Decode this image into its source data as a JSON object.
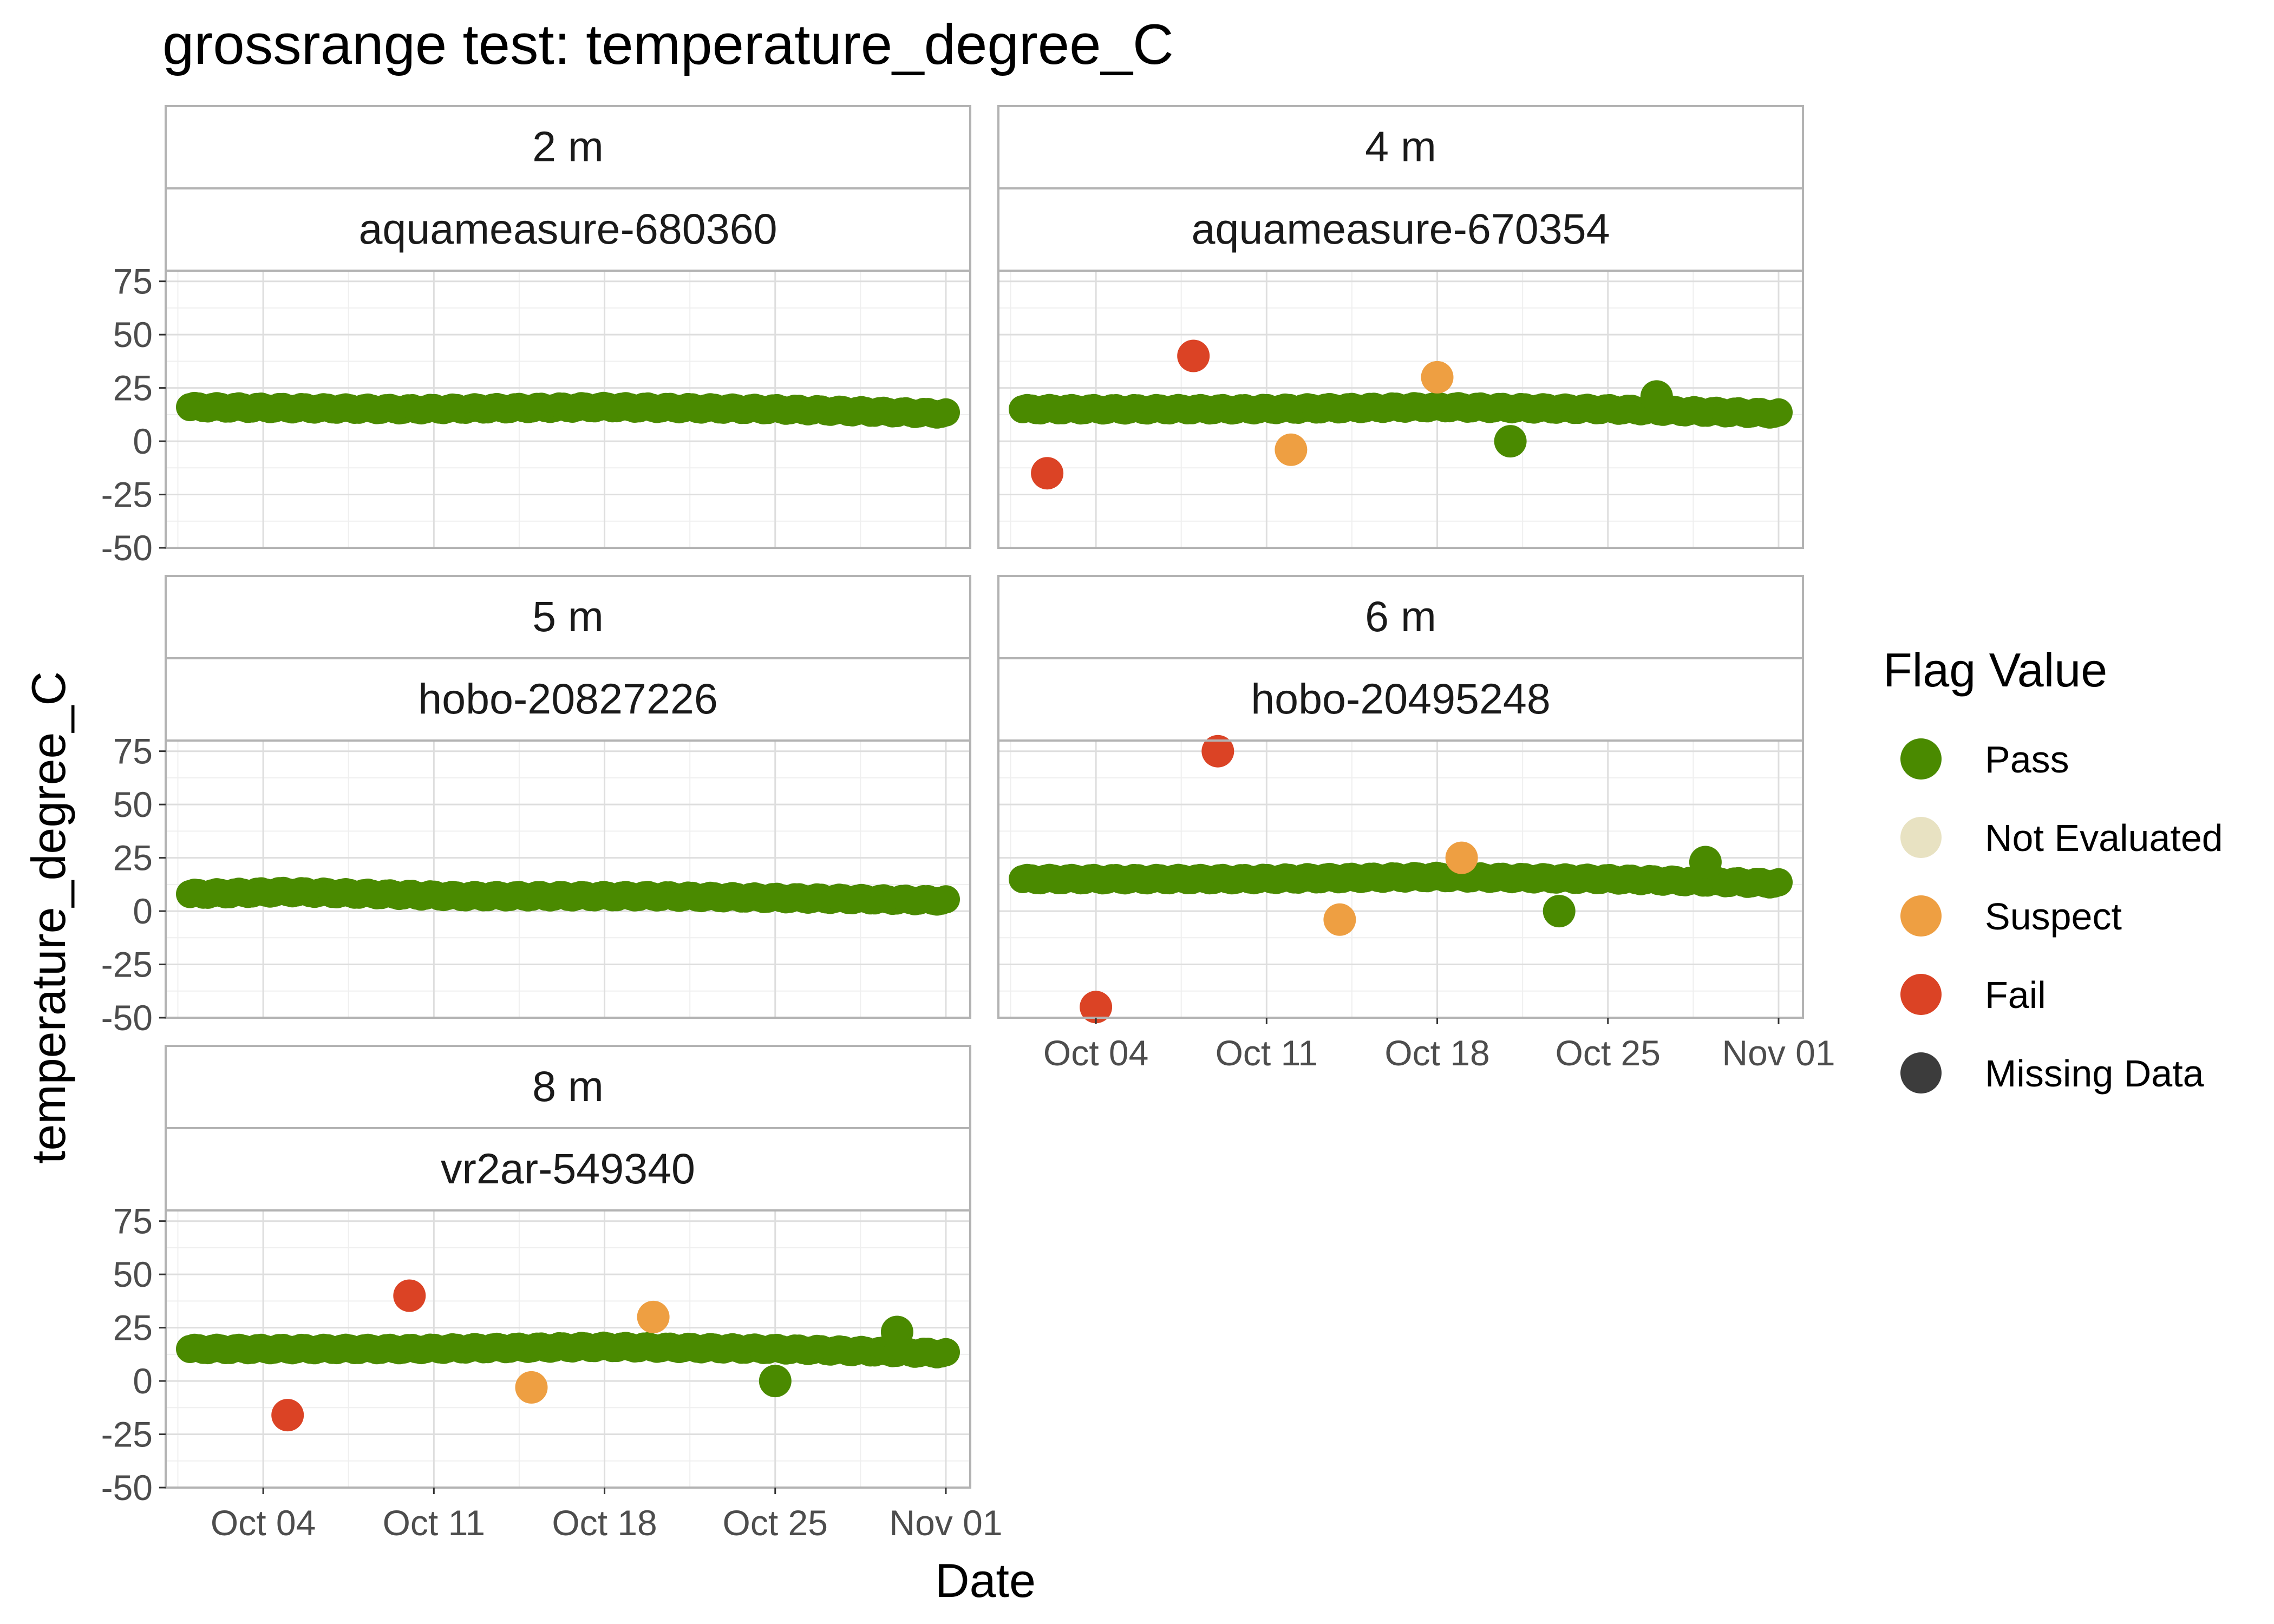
{
  "chart_data": {
    "type": "scatter",
    "title": "grossrange test: temperature_degree_C",
    "xlabel": "Date",
    "ylabel": "temperature_degree_C",
    "x_range": [
      "2023-09-30",
      "2023-11-02"
    ],
    "x_ticks": [
      {
        "date": "2023-10-04",
        "label": "Oct 04"
      },
      {
        "date": "2023-10-11",
        "label": "Oct 11"
      },
      {
        "date": "2023-10-18",
        "label": "Oct 18"
      },
      {
        "date": "2023-10-25",
        "label": "Oct 25"
      },
      {
        "date": "2023-11-01",
        "label": "Nov 01"
      }
    ],
    "y_ticks": [
      75,
      50,
      25,
      0,
      -25,
      -50
    ],
    "ylim": [
      -50,
      80
    ],
    "grid": true,
    "legend": {
      "title": "Flag Value",
      "position": "right",
      "entries": [
        {
          "label": "Pass",
          "color": "#4a8a00"
        },
        {
          "label": "Not Evaluated",
          "color": "#e8e2c2"
        },
        {
          "label": "Suspect",
          "color": "#ee9f42"
        },
        {
          "label": "Fail",
          "color": "#db4325"
        },
        {
          "label": "Missing Data",
          "color": "#3c3c3c"
        }
      ]
    },
    "panels": [
      {
        "depth": "2 m",
        "sensor": "aquameasure-680360",
        "pass_trend": [
          [
            "2023-10-01",
            16
          ],
          [
            "2023-10-10",
            15
          ],
          [
            "2023-10-18",
            16
          ],
          [
            "2023-10-25",
            15
          ],
          [
            "2023-11-01",
            13
          ]
        ],
        "outliers": []
      },
      {
        "depth": "4 m",
        "sensor": "aquameasure-670354",
        "pass_trend": [
          [
            "2023-10-01",
            15
          ],
          [
            "2023-10-10",
            15
          ],
          [
            "2023-10-18",
            16
          ],
          [
            "2023-10-25",
            15
          ],
          [
            "2023-11-01",
            13
          ]
        ],
        "outliers": [
          {
            "date": "2023-10-02",
            "value": -15,
            "flag": "Fail"
          },
          {
            "date": "2023-10-08",
            "value": 40,
            "flag": "Fail"
          },
          {
            "date": "2023-10-12",
            "value": -4,
            "flag": "Suspect"
          },
          {
            "date": "2023-10-18",
            "value": 30,
            "flag": "Suspect"
          },
          {
            "date": "2023-10-21",
            "value": 0,
            "flag": "Pass"
          },
          {
            "date": "2023-10-27",
            "value": 21,
            "flag": "Pass"
          }
        ]
      },
      {
        "depth": "5 m",
        "sensor": "hobo-20827226",
        "pass_trend": [
          [
            "2023-10-01",
            8
          ],
          [
            "2023-10-05",
            9
          ],
          [
            "2023-10-12",
            7
          ],
          [
            "2023-10-20",
            7
          ],
          [
            "2023-10-26",
            6
          ],
          [
            "2023-11-01",
            5
          ]
        ],
        "outliers": []
      },
      {
        "depth": "6 m",
        "sensor": "hobo-20495248",
        "pass_trend": [
          [
            "2023-10-01",
            15
          ],
          [
            "2023-10-10",
            15
          ],
          [
            "2023-10-18",
            16
          ],
          [
            "2023-10-25",
            15
          ],
          [
            "2023-11-01",
            13
          ]
        ],
        "outliers": [
          {
            "date": "2023-10-04",
            "value": -45,
            "flag": "Fail"
          },
          {
            "date": "2023-10-09",
            "value": 75,
            "flag": "Fail"
          },
          {
            "date": "2023-10-14",
            "value": -4,
            "flag": "Suspect"
          },
          {
            "date": "2023-10-19",
            "value": 25,
            "flag": "Suspect"
          },
          {
            "date": "2023-10-23",
            "value": 0,
            "flag": "Pass"
          },
          {
            "date": "2023-10-29",
            "value": 23,
            "flag": "Pass"
          }
        ]
      },
      {
        "depth": "8 m",
        "sensor": "vr2ar-549340",
        "pass_trend": [
          [
            "2023-10-01",
            15
          ],
          [
            "2023-10-10",
            15
          ],
          [
            "2023-10-18",
            16
          ],
          [
            "2023-10-25",
            15
          ],
          [
            "2023-11-01",
            13
          ]
        ],
        "outliers": [
          {
            "date": "2023-10-05",
            "value": -16,
            "flag": "Fail"
          },
          {
            "date": "2023-10-10",
            "value": 40,
            "flag": "Fail"
          },
          {
            "date": "2023-10-15",
            "value": -3,
            "flag": "Suspect"
          },
          {
            "date": "2023-10-20",
            "value": 30,
            "flag": "Suspect"
          },
          {
            "date": "2023-10-25",
            "value": 0,
            "flag": "Pass"
          },
          {
            "date": "2023-10-30",
            "value": 23,
            "flag": "Pass"
          }
        ]
      }
    ]
  }
}
